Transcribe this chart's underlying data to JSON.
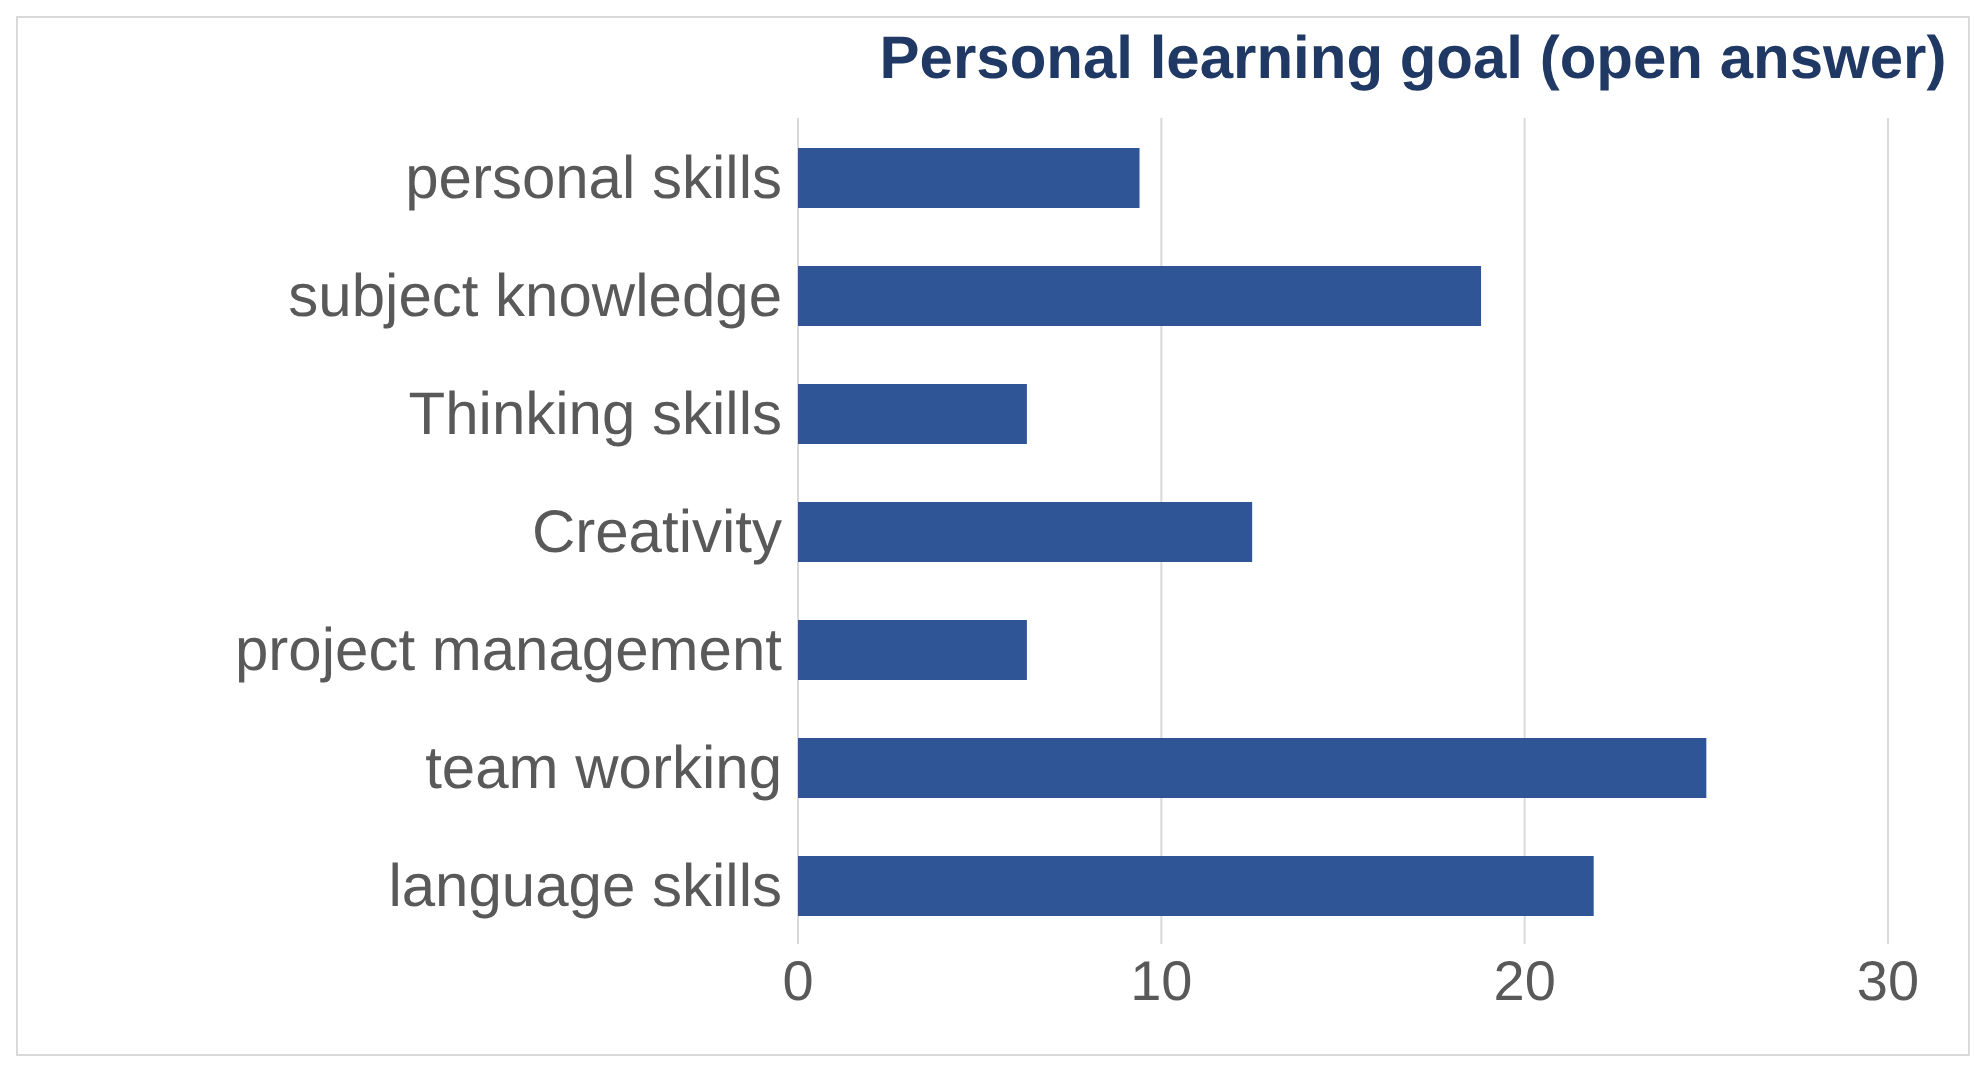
{
  "chart_data": {
    "type": "bar",
    "orientation": "horizontal",
    "title": "Personal learning goal (open answer)",
    "categories": [
      "personal skills",
      "subject knowledge",
      "Thinking skills",
      "Creativity",
      "project management",
      "team working",
      "language skills"
    ],
    "values": [
      9.4,
      18.8,
      6.3,
      12.5,
      6.3,
      25,
      21.9
    ],
    "color": "#2f5597",
    "xlim": [
      0,
      30
    ],
    "xticks": [
      0,
      10,
      20,
      30
    ],
    "grid": "x"
  }
}
